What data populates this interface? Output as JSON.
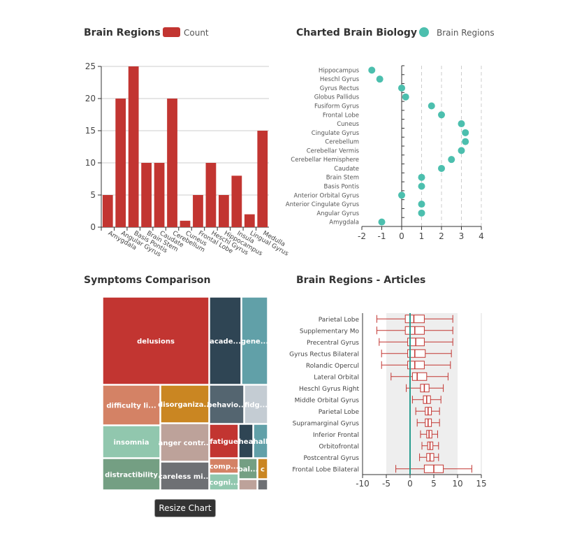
{
  "button": {
    "resize_label": "Resize Chart"
  },
  "chart_data": [
    {
      "type": "bar",
      "title": "Brain Regions",
      "legend": [
        {
          "label": "Count",
          "color": "#c23531"
        }
      ],
      "categories": [
        "Amygdala",
        "Angular Gyrus",
        "Basis Pontis",
        "Brain Stem",
        "Caudate",
        "Cerebellum",
        "Cuneus",
        "Frontal Lobe",
        "Heschl Gyrus",
        "Hippocampus",
        "Insula",
        "Lingual Gyrus",
        "Medulla"
      ],
      "series": [
        {
          "name": "Count",
          "values": [
            5,
            20,
            25,
            10,
            10,
            20,
            1,
            5,
            10,
            5,
            8,
            2,
            15
          ]
        }
      ],
      "ylim": [
        0,
        25
      ],
      "yticks": [
        0,
        5,
        10,
        15,
        20,
        25
      ],
      "grid": true
    },
    {
      "type": "scatter",
      "title": "Charted Brain Biology",
      "legend": [
        {
          "label": "Brain Regions",
          "color": "#4cbfae"
        }
      ],
      "categories": [
        "Amygdala",
        "Angular Gyrus",
        "Anterior Cingulate Gyrus",
        "Anterior Orbital Gyrus",
        "Basis Pontis",
        "Brain Stem",
        "Caudate",
        "Cerebellar Hemisphere",
        "Cerebellar Vermis",
        "Cerebellum",
        "Cingulate Gyrus",
        "Cuneus",
        "Frontal Lobe",
        "Fusiform Gyrus",
        "Globus Pallidus",
        "Gyrus Rectus",
        "Heschl Gyrus",
        "Hippocampus"
      ],
      "series": [
        {
          "name": "Brain Regions",
          "values": [
            -1,
            1,
            1,
            0,
            1,
            1,
            2,
            2.5,
            3,
            3.2,
            3.2,
            3,
            2,
            1.5,
            0.2,
            0,
            -1.1,
            -1.5
          ]
        }
      ],
      "xlim": [
        -2,
        4
      ],
      "xticks": [
        -2,
        -1,
        0,
        1,
        2,
        3,
        4
      ]
    },
    {
      "type": "treemap",
      "title": "Symptoms Comparison",
      "items": [
        {
          "label": "delusions",
          "color": "#c23531"
        },
        {
          "label": "acade...",
          "color": "#2f4554"
        },
        {
          "label": "gene...",
          "color": "#61a0a8"
        },
        {
          "label": "difficulty li...",
          "color": "#d48265"
        },
        {
          "label": "disorganiza...",
          "color": "#ca8622"
        },
        {
          "label": "behavio...",
          "color": "#546570"
        },
        {
          "label": "fidg...",
          "color": "#c4ccd3"
        },
        {
          "label": "insomnia",
          "color": "#91c7ae"
        },
        {
          "label": "anger contr...",
          "color": "#bda29a"
        },
        {
          "label": "fatigue",
          "color": "#c23531"
        },
        {
          "label": "hea",
          "color": "#2f4554"
        },
        {
          "label": "hall",
          "color": "#61a0a8"
        },
        {
          "label": "distractibility",
          "color": "#749f83"
        },
        {
          "label": "careless mi...",
          "color": "#6e7074"
        },
        {
          "label": "comp...",
          "color": "#d48265"
        },
        {
          "label": "bal...",
          "color": "#749f83"
        },
        {
          "label": "c",
          "color": "#ca8622"
        },
        {
          "label": "cogni...",
          "color": "#91c7ae"
        },
        {
          "label": "",
          "color": "#bda29a"
        },
        {
          "label": "",
          "color": "#6e7074"
        }
      ]
    },
    {
      "type": "boxplot",
      "title": "Brain Regions - Articles",
      "categories": [
        "Frontal Lobe Bilateral",
        "Postcentral Gyrus",
        "Orbitofrontal",
        "Inferior Frontal",
        "Supramarginal Gyrus",
        "Parietal Lobe",
        "Middle Orbital Gyrus",
        "Heschl Gyrus Right",
        "Lateral Orbital",
        "Rolandic Opercul",
        "Gyrus Rectus Bilateral",
        "Precentral Gyrus",
        "Supplementary Mo",
        "Parietal Lobe"
      ],
      "boxes": [
        {
          "min": -3,
          "q1": 3,
          "median": 5,
          "q3": 7,
          "max": 13
        },
        {
          "min": 2,
          "q1": 3.5,
          "median": 4.2,
          "q3": 5,
          "max": 6
        },
        {
          "min": 2.5,
          "q1": 3.7,
          "median": 4.2,
          "q3": 4.8,
          "max": 6
        },
        {
          "min": 2.2,
          "q1": 3.5,
          "median": 4,
          "q3": 4.6,
          "max": 5.8
        },
        {
          "min": 1.5,
          "q1": 3.2,
          "median": 3.8,
          "q3": 4.5,
          "max": 6.2
        },
        {
          "min": 1.2,
          "q1": 3.2,
          "median": 3.8,
          "q3": 4.5,
          "max": 6.2
        },
        {
          "min": 0.5,
          "q1": 2.8,
          "median": 3.5,
          "q3": 4.3,
          "max": 6.5
        },
        {
          "min": -0.8,
          "q1": 2.2,
          "median": 3,
          "q3": 4,
          "max": 7
        },
        {
          "min": -4,
          "q1": 0.5,
          "median": 1.5,
          "q3": 3.5,
          "max": 8
        },
        {
          "min": -6,
          "q1": -0.5,
          "median": 1,
          "q3": 3,
          "max": 8.5
        },
        {
          "min": -6,
          "q1": -0.5,
          "median": 1,
          "q3": 3.2,
          "max": 8.7
        },
        {
          "min": -6.5,
          "q1": -0.5,
          "median": 1.2,
          "q3": 3,
          "max": 9
        },
        {
          "min": -7,
          "q1": -1,
          "median": 1,
          "q3": 3,
          "max": 9
        },
        {
          "min": -7,
          "q1": -1,
          "median": 0.8,
          "q3": 3,
          "max": 9
        }
      ],
      "markline": 0,
      "band": [
        -5,
        10
      ],
      "xlim": [
        -10,
        15
      ],
      "xticks": [
        -10,
        -5,
        0,
        5,
        10,
        15
      ]
    }
  ]
}
